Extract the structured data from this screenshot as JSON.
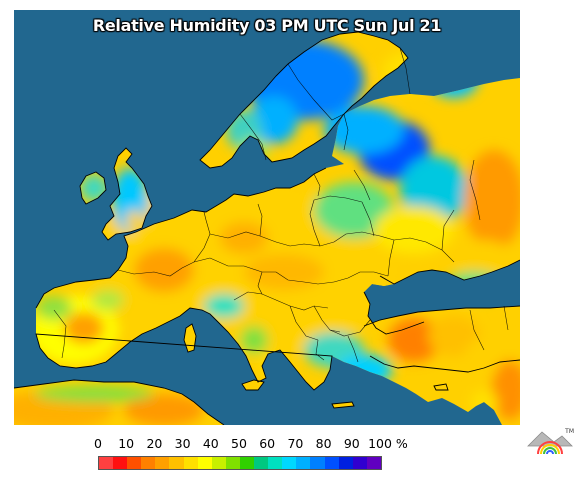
{
  "title": "Relative Humidity 03 PM UTC Sun Jul 21",
  "legend": {
    "ticks": [
      "0",
      "10",
      "20",
      "30",
      "40",
      "50",
      "60",
      "70",
      "80",
      "90",
      "100 %"
    ],
    "colors": [
      "#ff4040",
      "#ff1010",
      "#ff5000",
      "#ff8000",
      "#ffa000",
      "#ffc000",
      "#ffe000",
      "#ffff00",
      "#c8f000",
      "#80e000",
      "#30d000",
      "#00c880",
      "#00e0c0",
      "#00d8ff",
      "#00b0ff",
      "#0080ff",
      "#0050ff",
      "#0020e0",
      "#3000d0",
      "#6000c0"
    ]
  },
  "map": {
    "ocean_color": "#21678f",
    "humidity_palette": {
      "very_dry": "#ff7f00",
      "dry": "#ffa000",
      "mid_dry": "#ffd000",
      "mid": "#ffff00",
      "mid_humid": "#80e040",
      "humid": "#00e0c0",
      "very_humid": "#00b0ff",
      "saturated": "#0060ff"
    }
  },
  "logo": {
    "name": "logo-icon",
    "tm": "TM"
  }
}
